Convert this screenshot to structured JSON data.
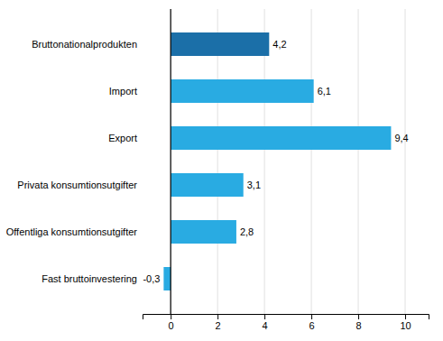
{
  "chart_data": {
    "type": "bar",
    "orientation": "horizontal",
    "categories": [
      "Fast bruttoinvestering",
      "Offentliga konsumtionsutgifter",
      "Privata konsumtionsutgifter",
      "Export",
      "Import",
      "Bruttonationalprodukten"
    ],
    "values": [
      -0.3,
      2.8,
      3.1,
      9.4,
      6.1,
      4.2
    ],
    "value_labels": [
      "-0,3",
      "2,8",
      "3,1",
      "9,4",
      "6,1",
      "4,2"
    ],
    "data_labels": true,
    "colors": [
      "#29abe2",
      "#29abe2",
      "#29abe2",
      "#29abe2",
      "#29abe2",
      "#1b6fa8"
    ],
    "xlim": [
      -1.2,
      11
    ],
    "xticks": [
      0,
      2,
      4,
      6,
      8,
      10
    ],
    "grid": true
  }
}
